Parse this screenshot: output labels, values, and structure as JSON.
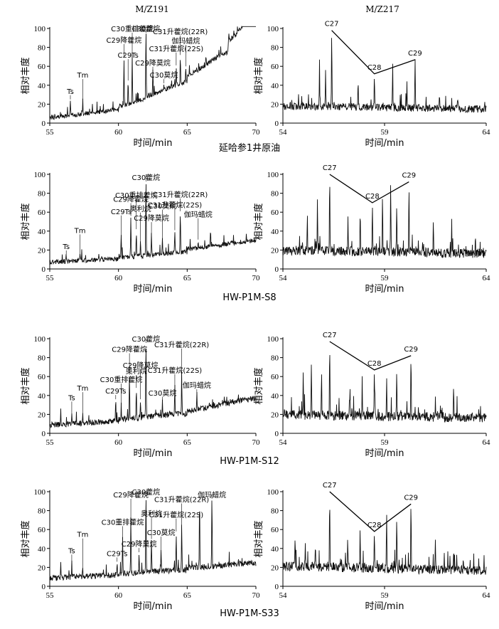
{
  "figure": {
    "column_titles": [
      "M/Z191",
      "M/Z217"
    ]
  },
  "chart_data": [
    {
      "type": "line",
      "sample": "延哈参1井原油",
      "title": "M/Z191",
      "xlabel": "时间/min",
      "ylabel": "相对丰度",
      "xlim": [
        55,
        70
      ],
      "ylim": [
        0,
        100
      ],
      "xticks": [
        55,
        60,
        65,
        70
      ],
      "yticks": [
        0,
        20,
        40,
        60,
        80,
        100
      ],
      "baseline": [
        [
          55,
          4
        ],
        [
          60,
          12
        ],
        [
          62,
          19
        ],
        [
          65,
          34
        ],
        [
          68,
          58
        ],
        [
          70,
          88
        ]
      ],
      "noise": 2.5,
      "peaks": [
        {
          "x": 56.5,
          "y": 25,
          "label": "Ts"
        },
        {
          "x": 57.4,
          "y": 24,
          "label": "Tm"
        },
        {
          "x": 60.7,
          "y": 45,
          "label": "C29Ts"
        },
        {
          "x": 60.4,
          "y": 70,
          "label": "C29降藿烷"
        },
        {
          "x": 61.0,
          "y": 73,
          "label": "C30重排藿烷"
        },
        {
          "x": 62.0,
          "y": 99,
          "label": "C30藿烷"
        },
        {
          "x": 62.5,
          "y": 55,
          "label": "C29降莫烷"
        },
        {
          "x": 64.2,
          "y": 61,
          "label": "C31升藿烷(22S)"
        },
        {
          "x": 64.5,
          "y": 72,
          "label": "C31升藿烷(22R)"
        },
        {
          "x": 63.3,
          "y": 42,
          "label": "C30莫烷"
        },
        {
          "x": 64.9,
          "y": 60,
          "label": "伽玛蜡烷"
        }
      ],
      "annotations": [
        "Ts",
        "Tm",
        "C29Ts",
        "C29降藿烷",
        "C30重排藿烷",
        "C30藿烷",
        "C29降莫烷",
        "C31升藿烷(22S)",
        "C31升藿烷(22R)",
        "C30莫烷",
        "伽玛蜡烷"
      ]
    },
    {
      "type": "line",
      "sample": "延哈参1井原油",
      "title": "M/Z217",
      "xlabel": "时间/min",
      "ylabel": "相对丰度",
      "xlim": [
        54,
        64
      ],
      "ylim": [
        0,
        100
      ],
      "xticks": [
        54,
        59,
        64
      ],
      "yticks": [
        0,
        20,
        40,
        60,
        80,
        100
      ],
      "baseline": [
        [
          54,
          12
        ],
        [
          64,
          9
        ]
      ],
      "noise": 4,
      "peaks": [
        {
          "x": 55.8,
          "y": 66
        },
        {
          "x": 56.1,
          "y": 58
        },
        {
          "x": 56.4,
          "y": 98,
          "label": "C27"
        },
        {
          "x": 57.7,
          "y": 48
        },
        {
          "x": 58.5,
          "y": 52,
          "label": "C28"
        },
        {
          "x": 59.4,
          "y": 60
        },
        {
          "x": 60.1,
          "y": 40
        },
        {
          "x": 60.5,
          "y": 67,
          "label": "C29"
        },
        {
          "x": 61.7,
          "y": 32
        },
        {
          "x": 62.6,
          "y": 26
        }
      ],
      "annotations": [
        "C27",
        "C28",
        "C29"
      ],
      "triangle": [
        [
          56.4,
          98
        ],
        [
          58.5,
          52
        ],
        [
          60.5,
          67
        ]
      ]
    },
    {
      "type": "line",
      "sample": "HW-P1M-S8",
      "xlabel": "时间/min",
      "ylabel": "相对丰度",
      "xlim": [
        55,
        70
      ],
      "ylim": [
        0,
        100
      ],
      "xticks": [
        55,
        60,
        65,
        70
      ],
      "yticks": [
        0,
        20,
        40,
        60,
        80,
        100
      ],
      "baseline": [
        [
          55,
          5
        ],
        [
          60,
          8
        ],
        [
          65,
          14
        ],
        [
          70,
          23
        ]
      ],
      "noise": 2.5,
      "peaks": [
        {
          "x": 56.2,
          "y": 15,
          "label": "Ts"
        },
        {
          "x": 57.2,
          "y": 14,
          "label": "Tm"
        },
        {
          "x": 60.2,
          "y": 34,
          "label": "C29Ts"
        },
        {
          "x": 60.9,
          "y": 56,
          "label": "C29降藿烷"
        },
        {
          "x": 61.3,
          "y": 42,
          "label": "C30重排藿烷"
        },
        {
          "x": 61.6,
          "y": 28,
          "label": "奥利烷"
        },
        {
          "x": 62.0,
          "y": 100,
          "label": "C30藿烷"
        },
        {
          "x": 62.4,
          "y": 36,
          "label": "C29降莫烷"
        },
        {
          "x": 63.2,
          "y": 31,
          "label": "C30莫烷"
        },
        {
          "x": 64.1,
          "y": 41,
          "label": "C31升藿烷(22S)"
        },
        {
          "x": 64.5,
          "y": 61,
          "label": "C31升藿烷(22R)"
        },
        {
          "x": 65.8,
          "y": 31,
          "label": "伽玛蜡烷"
        },
        {
          "x": 66.7,
          "y": 42
        }
      ],
      "annotations": [
        "Ts",
        "Tm",
        "C29Ts",
        "C29降藿烷",
        "C30重排藿烷",
        "奥利烷",
        "C30藿烷",
        "C29降莫烷",
        "C30莫烷",
        "C31升藿烷(22S)",
        "C31升藿烷(22R)",
        "伽玛蜡烷"
      ]
    },
    {
      "type": "line",
      "sample": "HW-P1M-S8",
      "xlabel": "时间/min",
      "ylabel": "相对丰度",
      "xlim": [
        54,
        64
      ],
      "ylim": [
        0,
        100
      ],
      "xticks": [
        54,
        59,
        64
      ],
      "yticks": [
        0,
        20,
        40,
        60,
        80,
        100
      ],
      "baseline": [
        [
          54,
          13
        ],
        [
          64,
          10
        ]
      ],
      "noise": 5,
      "peaks": [
        {
          "x": 55.2,
          "y": 60
        },
        {
          "x": 55.7,
          "y": 72
        },
        {
          "x": 56.3,
          "y": 100,
          "label": "C27"
        },
        {
          "x": 57.2,
          "y": 56
        },
        {
          "x": 57.8,
          "y": 62
        },
        {
          "x": 58.4,
          "y": 70,
          "label": "C28"
        },
        {
          "x": 58.9,
          "y": 74
        },
        {
          "x": 59.3,
          "y": 86
        },
        {
          "x": 59.6,
          "y": 74
        },
        {
          "x": 60.2,
          "y": 92,
          "label": "C29"
        },
        {
          "x": 61.4,
          "y": 42
        },
        {
          "x": 62.3,
          "y": 34
        }
      ],
      "annotations": [
        "C27",
        "C28",
        "C29"
      ],
      "triangle": [
        [
          56.3,
          100
        ],
        [
          58.4,
          70
        ],
        [
          60.2,
          92
        ]
      ]
    },
    {
      "type": "line",
      "sample": "HW-P1M-S12",
      "xlabel": "时间/min",
      "ylabel": "相对丰度",
      "xlim": [
        55,
        70
      ],
      "ylim": [
        0,
        100
      ],
      "xticks": [
        55,
        60,
        65,
        70
      ],
      "yticks": [
        0,
        20,
        40,
        60,
        80,
        100
      ],
      "baseline": [
        [
          55,
          6
        ],
        [
          60,
          10
        ],
        [
          65,
          16
        ],
        [
          70,
          29
        ]
      ],
      "noise": 3,
      "peaks": [
        {
          "x": 55.8,
          "y": 24
        },
        {
          "x": 56.6,
          "y": 20,
          "label": "Ts"
        },
        {
          "x": 57.4,
          "y": 21,
          "label": "Tm"
        },
        {
          "x": 59.8,
          "y": 36,
          "label": "C29Ts"
        },
        {
          "x": 60.2,
          "y": 30,
          "label": "C30重排藿烷"
        },
        {
          "x": 60.8,
          "y": 62,
          "label": "C29降藿烷"
        },
        {
          "x": 61.3,
          "y": 48,
          "label": "奥利烷"
        },
        {
          "x": 61.6,
          "y": 36,
          "label": "C29降莫烷"
        },
        {
          "x": 62.0,
          "y": 100,
          "label": "C30藿烷"
        },
        {
          "x": 63.2,
          "y": 34,
          "label": "C30莫烷"
        },
        {
          "x": 64.1,
          "y": 49,
          "label": "C31升藿烷(22S)"
        },
        {
          "x": 64.6,
          "y": 67,
          "label": "C31升藿烷(22R)"
        },
        {
          "x": 65.7,
          "y": 42,
          "label": "伽玛蜡烷"
        },
        {
          "x": 66.6,
          "y": 30
        }
      ],
      "annotations": [
        "Ts",
        "Tm",
        "C29Ts",
        "C30重排藿烷",
        "C29降藿烷",
        "奥利烷",
        "C29降莫烷",
        "C30藿烷",
        "C30莫烷",
        "C31升藿烷(22S)",
        "C31升藿烷(22R)",
        "伽玛蜡烷"
      ]
    },
    {
      "type": "line",
      "sample": "HW-P1M-S12",
      "xlabel": "时间/min",
      "ylabel": "相对丰度",
      "xlim": [
        54,
        64
      ],
      "ylim": [
        0,
        100
      ],
      "xticks": [
        54,
        59,
        64
      ],
      "yticks": [
        0,
        20,
        40,
        60,
        80,
        100
      ],
      "baseline": [
        [
          54,
          13
        ],
        [
          64,
          10
        ]
      ],
      "noise": 5,
      "peaks": [
        {
          "x": 55.0,
          "y": 66
        },
        {
          "x": 55.4,
          "y": 72
        },
        {
          "x": 55.9,
          "y": 70
        },
        {
          "x": 56.3,
          "y": 97,
          "label": "C27"
        },
        {
          "x": 57.3,
          "y": 50
        },
        {
          "x": 57.9,
          "y": 56
        },
        {
          "x": 58.5,
          "y": 67,
          "label": "C28"
        },
        {
          "x": 59.1,
          "y": 60
        },
        {
          "x": 59.6,
          "y": 64
        },
        {
          "x": 60.3,
          "y": 82,
          "label": "C29"
        },
        {
          "x": 61.5,
          "y": 36
        },
        {
          "x": 62.4,
          "y": 50
        }
      ],
      "annotations": [
        "C27",
        "C28",
        "C29"
      ],
      "triangle": [
        [
          56.3,
          97
        ],
        [
          58.5,
          67
        ],
        [
          60.3,
          82
        ]
      ]
    },
    {
      "type": "line",
      "sample": "HW-P1M-S33",
      "xlabel": "时间/min",
      "ylabel": "相对丰度",
      "xlim": [
        55,
        70
      ],
      "ylim": [
        0,
        100
      ],
      "xticks": [
        55,
        60,
        65,
        70
      ],
      "yticks": [
        0,
        20,
        40,
        60,
        80,
        100
      ],
      "baseline": [
        [
          55,
          6
        ],
        [
          60,
          9
        ],
        [
          65,
          13
        ],
        [
          70,
          18
        ]
      ],
      "noise": 3,
      "peaks": [
        {
          "x": 55.8,
          "y": 24
        },
        {
          "x": 56.6,
          "y": 20,
          "label": "Ts"
        },
        {
          "x": 57.4,
          "y": 19,
          "label": "Tm"
        },
        {
          "x": 59.9,
          "y": 26,
          "label": "C29Ts"
        },
        {
          "x": 60.3,
          "y": 50,
          "label": "C30重排藿烷"
        },
        {
          "x": 60.9,
          "y": 72,
          "label": "C29降藿烷"
        },
        {
          "x": 61.5,
          "y": 36,
          "label": "C29降莫烷"
        },
        {
          "x": 62.0,
          "y": 99,
          "label": "C30藿烷"
        },
        {
          "x": 62.4,
          "y": 50,
          "label": "奥利烷"
        },
        {
          "x": 63.1,
          "y": 39,
          "label": "C30莫烷"
        },
        {
          "x": 64.2,
          "y": 58,
          "label": "C31升藿烷(22S)"
        },
        {
          "x": 64.6,
          "y": 65,
          "label": "C31升藿烷(22R)"
        },
        {
          "x": 65.9,
          "y": 90
        },
        {
          "x": 66.8,
          "y": 97,
          "label": "伽玛蜡烷"
        }
      ],
      "annotations": [
        "Ts",
        "Tm",
        "C29Ts",
        "C30重排藿烷",
        "C29降藿烷",
        "C29降莫烷",
        "C30藿烷",
        "奥利烷",
        "C30莫烷",
        "C31升藿烷(22S)",
        "C31升藿烷(22R)",
        "伽玛蜡烷"
      ]
    },
    {
      "type": "line",
      "sample": "HW-P1M-S33",
      "xlabel": "时间/min",
      "ylabel": "相对丰度",
      "xlim": [
        54,
        64
      ],
      "ylim": [
        0,
        100
      ],
      "xticks": [
        54,
        59,
        64
      ],
      "yticks": [
        0,
        20,
        40,
        60,
        80,
        100
      ],
      "baseline": [
        [
          54,
          14
        ],
        [
          64,
          10
        ]
      ],
      "noise": 5,
      "peaks": [
        {
          "x": 54.6,
          "y": 55
        },
        {
          "x": 55.1,
          "y": 50
        },
        {
          "x": 55.6,
          "y": 46
        },
        {
          "x": 56.3,
          "y": 100,
          "label": "C27"
        },
        {
          "x": 57.2,
          "y": 42
        },
        {
          "x": 57.8,
          "y": 48
        },
        {
          "x": 58.5,
          "y": 58,
          "label": "C28"
        },
        {
          "x": 59.1,
          "y": 82
        },
        {
          "x": 59.6,
          "y": 72
        },
        {
          "x": 60.3,
          "y": 87,
          "label": "C29"
        },
        {
          "x": 61.5,
          "y": 52
        },
        {
          "x": 62.4,
          "y": 34
        }
      ],
      "annotations": [
        "C27",
        "C28",
        "C29"
      ],
      "triangle": [
        [
          56.3,
          100
        ],
        [
          58.5,
          58
        ],
        [
          60.3,
          87
        ]
      ]
    }
  ]
}
